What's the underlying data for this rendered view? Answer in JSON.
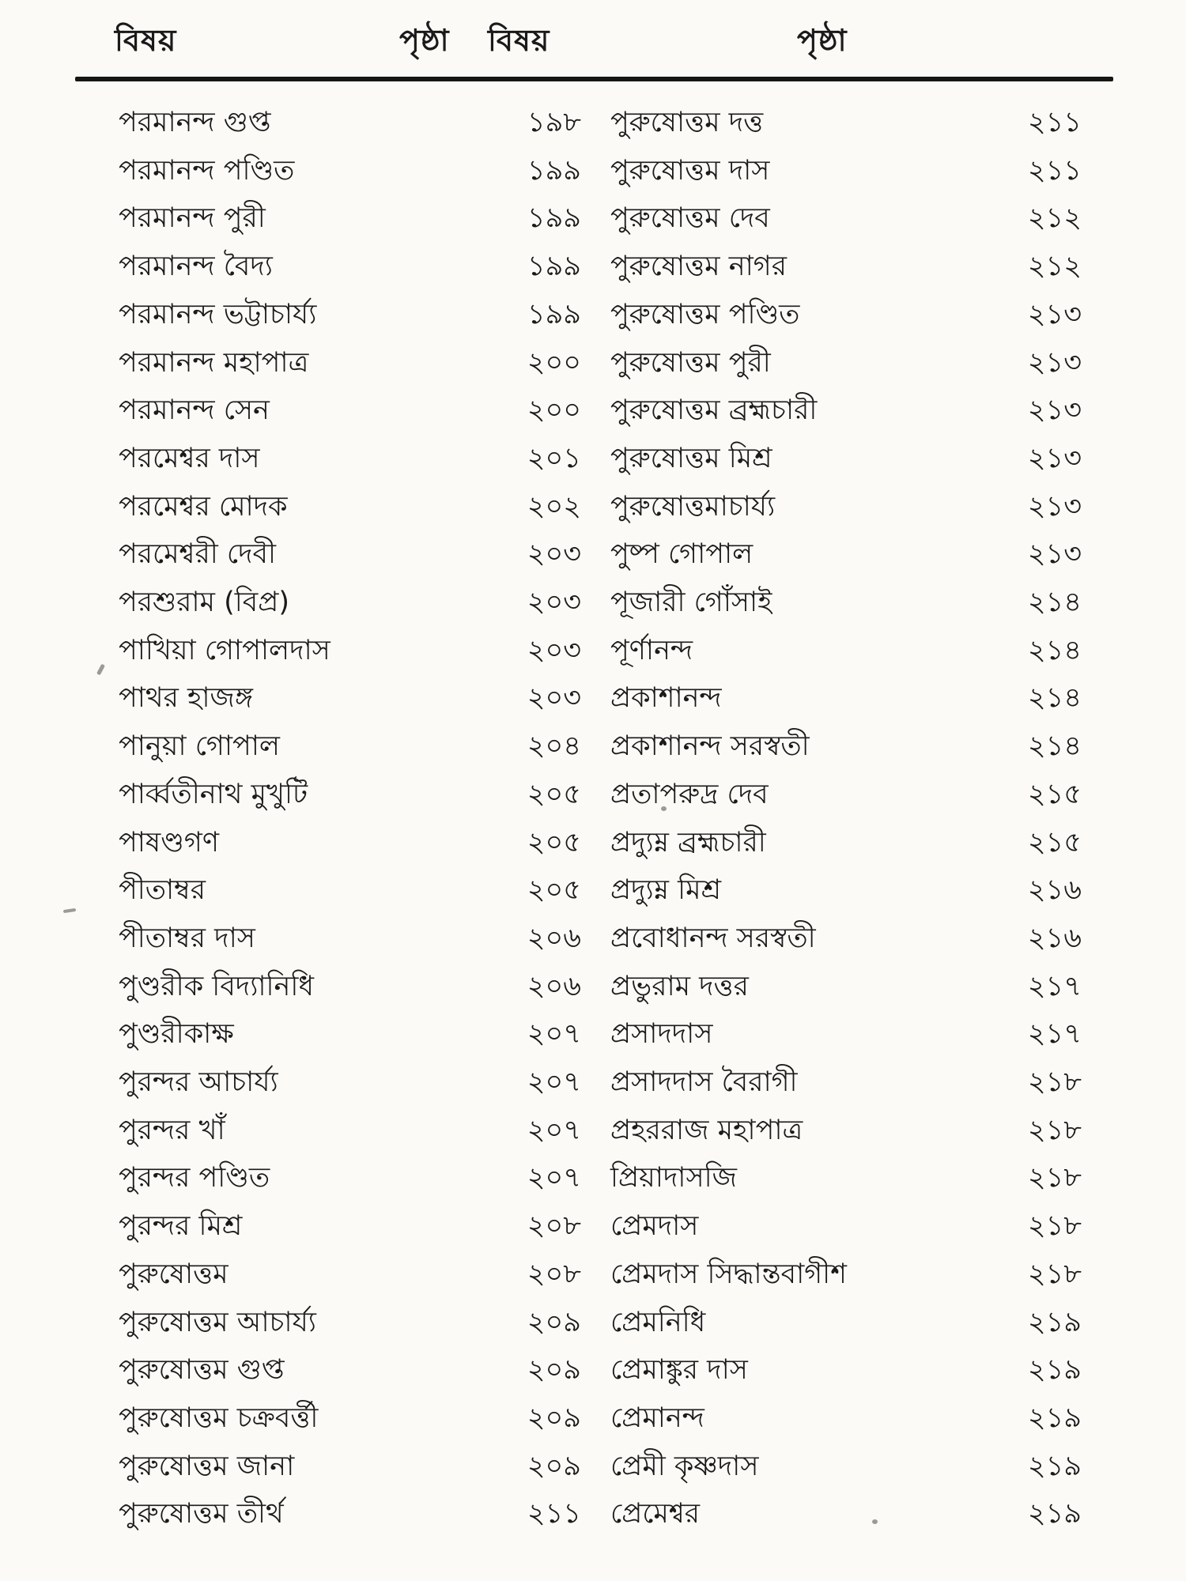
{
  "colors": {
    "background": "#fbfaf7",
    "text": "#1a1a1a",
    "rule": "#161616"
  },
  "headers": {
    "subject_left": "বিষয়",
    "page_left": "পৃষ্ঠা",
    "subject_right": "বিষয়",
    "page_right": "পৃষ্ঠা"
  },
  "index": {
    "left": [
      {
        "name": "পরমানন্দ গুপ্ত",
        "page": "১৯৮"
      },
      {
        "name": "পরমানন্দ পণ্ডিত",
        "page": "১৯৯"
      },
      {
        "name": "পরমানন্দ পুরী",
        "page": "১৯৯"
      },
      {
        "name": "পরমানন্দ বৈদ্য",
        "page": "১৯৯"
      },
      {
        "name": "পরমানন্দ ভট্টাচার্য্য",
        "page": "১৯৯"
      },
      {
        "name": "পরমানন্দ মহাপাত্র",
        "page": "২০০"
      },
      {
        "name": "পরমানন্দ সেন",
        "page": "২০০"
      },
      {
        "name": "পরমেশ্বর দাস",
        "page": "২০১"
      },
      {
        "name": "পরমেশ্বর মোদক",
        "page": "২০২"
      },
      {
        "name": "পরমেশ্বরী দেবী",
        "page": "২০৩"
      },
      {
        "name": "পরশুরাম (বিপ্র)",
        "page": "২০৩"
      },
      {
        "name": "পাখিয়া গোপালদাস",
        "page": "২০৩"
      },
      {
        "name": "পাথর হাজঙ্গ",
        "page": "২০৩"
      },
      {
        "name": "পানুয়া গোপাল",
        "page": "২০৪"
      },
      {
        "name": "পার্ব্বতীনাথ মুখুটি",
        "page": "২০৫"
      },
      {
        "name": "পাষণ্ডগণ",
        "page": "২০৫"
      },
      {
        "name": "পীতাম্বর",
        "page": "২০৫"
      },
      {
        "name": "পীতাম্বর দাস",
        "page": "২০৬"
      },
      {
        "name": "পুণ্ডরীক বিদ্যানিধি",
        "page": "২০৬"
      },
      {
        "name": "পুণ্ডরীকাক্ষ",
        "page": "২০৭"
      },
      {
        "name": "পুরন্দর আচার্য্য",
        "page": "২০৭"
      },
      {
        "name": "পুরন্দর খাঁ",
        "page": "২০৭"
      },
      {
        "name": "পুরন্দর পণ্ডিত",
        "page": "২০৭"
      },
      {
        "name": "পুরন্দর মিশ্র",
        "page": "২০৮"
      },
      {
        "name": "পুরুষোত্তম",
        "page": "২০৮"
      },
      {
        "name": "পুরুষোত্তম আচার্য্য",
        "page": "২০৯"
      },
      {
        "name": "পুরুষোত্তম গুপ্ত",
        "page": "২০৯"
      },
      {
        "name": "পুরুষোত্তম চক্রবর্ত্তী",
        "page": "২০৯"
      },
      {
        "name": "পুরুষোত্তম জানা",
        "page": "২০৯"
      },
      {
        "name": "পুরুষোত্তম তীর্থ",
        "page": "২১১"
      }
    ],
    "right": [
      {
        "name": "পুরুষোত্তম দত্ত",
        "page": "২১১"
      },
      {
        "name": "পুরুষোত্তম দাস",
        "page": "২১১"
      },
      {
        "name": "পুরুষোত্তম দেব",
        "page": "২১২"
      },
      {
        "name": "পুরুষোত্তম নাগর",
        "page": "২১২"
      },
      {
        "name": "পুরুষোত্তম পণ্ডিত",
        "page": "২১৩"
      },
      {
        "name": "পুরুষোত্তম পুরী",
        "page": "২১৩"
      },
      {
        "name": "পুরুষোত্তম ব্রহ্মচারী",
        "page": "২১৩"
      },
      {
        "name": "পুরুষোত্তম মিশ্র",
        "page": "২১৩"
      },
      {
        "name": "পুরুষোত্তমাচার্য্য",
        "page": "২১৩"
      },
      {
        "name": "পুষ্প গোপাল",
        "page": "২১৩"
      },
      {
        "name": "পূজারী গোঁসাই",
        "page": "২১৪"
      },
      {
        "name": "পূর্ণানন্দ",
        "page": "২১৪"
      },
      {
        "name": "প্রকাশানন্দ",
        "page": "২১৪"
      },
      {
        "name": "প্রকাশানন্দ সরস্বতী",
        "page": "২১৪"
      },
      {
        "name": "প্রতাপরুদ্র দেব",
        "page": "২১৫"
      },
      {
        "name": "প্রদ্যুম্ন ব্রহ্মচারী",
        "page": "২১৫"
      },
      {
        "name": "প্রদ্যুম্ন মিশ্র",
        "page": "২১৬"
      },
      {
        "name": "প্রবোধানন্দ সরস্বতী",
        "page": "২১৬"
      },
      {
        "name": "প্রভুরাম দত্তর",
        "page": "২১৭"
      },
      {
        "name": "প্রসাদদাস",
        "page": "২১৭"
      },
      {
        "name": "প্রসাদদাস বৈরাগী",
        "page": "২১৮"
      },
      {
        "name": "প্রহররাজ মহাপাত্র",
        "page": "২১৮"
      },
      {
        "name": "প্রিয়াদাসজি",
        "page": "২১৮"
      },
      {
        "name": "প্রেমদাস",
        "page": "২১৮"
      },
      {
        "name": "প্রেমদাস সিদ্ধান্তবাগীশ",
        "page": "২১৮"
      },
      {
        "name": "প্রেমনিধি",
        "page": "২১৯"
      },
      {
        "name": "প্রেমাঙ্কুর দাস",
        "page": "২১৯"
      },
      {
        "name": "প্রেমানন্দ",
        "page": "২১৯"
      },
      {
        "name": "প্রেমী কৃষ্ণদাস",
        "page": "২১৯"
      },
      {
        "name": "প্রেমেশ্বর",
        "page": "২১৯"
      }
    ]
  }
}
